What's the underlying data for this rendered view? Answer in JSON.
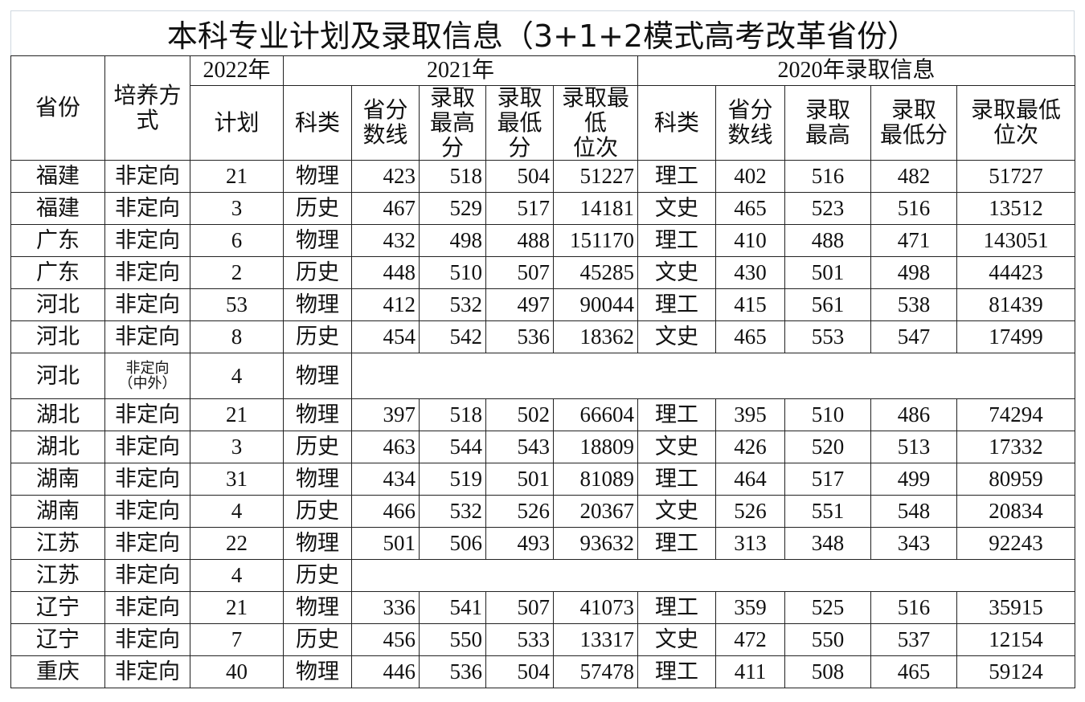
{
  "title": "本科专业计划及录取信息（3+1+2模式高考改革省份）",
  "header": {
    "top": [
      "省份",
      "培养方式",
      "2022年",
      "2021年",
      "2020年录取信息"
    ],
    "sub": [
      "计划",
      "科类",
      "省分\n数线",
      "录取\n最高\n分",
      "录取\n最低\n分",
      "录取最\n低\n位次",
      "科类",
      "省分\n数线",
      "录取\n最高",
      "录取\n最低分",
      "录取最低\n位次"
    ]
  },
  "table": {
    "rows": [
      [
        "福建",
        "非定向",
        "21",
        "物理",
        "423",
        "518",
        "504",
        "51227",
        "理工",
        "402",
        "516",
        "482",
        "51727"
      ],
      [
        "福建",
        "非定向",
        "3",
        "历史",
        "467",
        "529",
        "517",
        "14181",
        "文史",
        "465",
        "523",
        "516",
        "13512"
      ],
      [
        "广东",
        "非定向",
        "6",
        "物理",
        "432",
        "498",
        "488",
        "151170",
        "理工",
        "410",
        "488",
        "471",
        "143051"
      ],
      [
        "广东",
        "非定向",
        "2",
        "历史",
        "448",
        "510",
        "507",
        "45285",
        "文史",
        "430",
        "501",
        "498",
        "44423"
      ],
      [
        "河北",
        "非定向",
        "53",
        "物理",
        "412",
        "532",
        "497",
        "90044",
        "理工",
        "415",
        "561",
        "538",
        "81439"
      ],
      [
        "河北",
        "非定向",
        "8",
        "历史",
        "454",
        "542",
        "536",
        "18362",
        "文史",
        "465",
        "553",
        "547",
        "17499"
      ],
      [
        "河北",
        "非定向\n（中外）",
        "4",
        "物理"
      ],
      [
        "湖北",
        "非定向",
        "21",
        "物理",
        "397",
        "518",
        "502",
        "66604",
        "理工",
        "395",
        "510",
        "486",
        "74294"
      ],
      [
        "湖北",
        "非定向",
        "3",
        "历史",
        "463",
        "544",
        "543",
        "18809",
        "文史",
        "426",
        "520",
        "513",
        "17332"
      ],
      [
        "湖南",
        "非定向",
        "31",
        "物理",
        "434",
        "519",
        "501",
        "81089",
        "理工",
        "464",
        "517",
        "499",
        "80959"
      ],
      [
        "湖南",
        "非定向",
        "4",
        "历史",
        "466",
        "532",
        "526",
        "20367",
        "文史",
        "526",
        "551",
        "548",
        "20834"
      ],
      [
        "江苏",
        "非定向",
        "22",
        "物理",
        "501",
        "506",
        "493",
        "93632",
        "理工",
        "313",
        "348",
        "343",
        "92243"
      ],
      [
        "江苏",
        "非定向",
        "4",
        "历史"
      ],
      [
        "辽宁",
        "非定向",
        "21",
        "物理",
        "336",
        "541",
        "507",
        "41073",
        "理工",
        "359",
        "525",
        "516",
        "35915"
      ],
      [
        "辽宁",
        "非定向",
        "7",
        "历史",
        "456",
        "550",
        "533",
        "13317",
        "文史",
        "472",
        "550",
        "537",
        "12154"
      ],
      [
        "重庆",
        "非定向",
        "40",
        "物理",
        "446",
        "536",
        "504",
        "57478",
        "理工",
        "411",
        "508",
        "465",
        "59124"
      ]
    ]
  }
}
